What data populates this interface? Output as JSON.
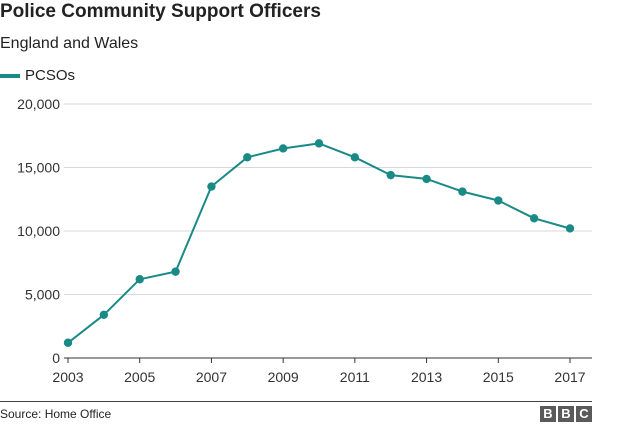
{
  "header": {
    "title": "Police Community Support Officers",
    "subtitle": "England and Wales"
  },
  "footer": {
    "source": "Source: Home Office",
    "logo_letters": [
      "B",
      "B",
      "C"
    ]
  },
  "colors": {
    "series": "#1a8a86",
    "gridline": "#d9d9d9",
    "axis": "#333333"
  },
  "chart_data": {
    "type": "line",
    "title": "Police Community Support Officers",
    "subtitle": "England and Wales",
    "xlabel": "",
    "ylabel": "",
    "legend_position": "top-left",
    "grid": true,
    "xlim": [
      2003,
      2017
    ],
    "ylim": [
      0,
      20000
    ],
    "x_ticks": [
      2003,
      2005,
      2007,
      2009,
      2011,
      2013,
      2015,
      2017
    ],
    "x_tick_labels": [
      "2003",
      "2005",
      "2007",
      "2009",
      "2011",
      "2013",
      "2015",
      "2017"
    ],
    "y_ticks": [
      0,
      5000,
      10000,
      15000,
      20000
    ],
    "y_tick_labels": [
      "0",
      "5,000",
      "10,000",
      "15,000",
      "20,000"
    ],
    "series": [
      {
        "name": "PCSOs",
        "x": [
          2003,
          2004,
          2005,
          2006,
          2007,
          2008,
          2009,
          2010,
          2011,
          2012,
          2013,
          2014,
          2015,
          2016,
          2017
        ],
        "values": [
          1200,
          3400,
          6200,
          6800,
          13500,
          15800,
          16500,
          16900,
          15800,
          14400,
          14100,
          13100,
          12400,
          11000,
          10200
        ]
      }
    ]
  }
}
